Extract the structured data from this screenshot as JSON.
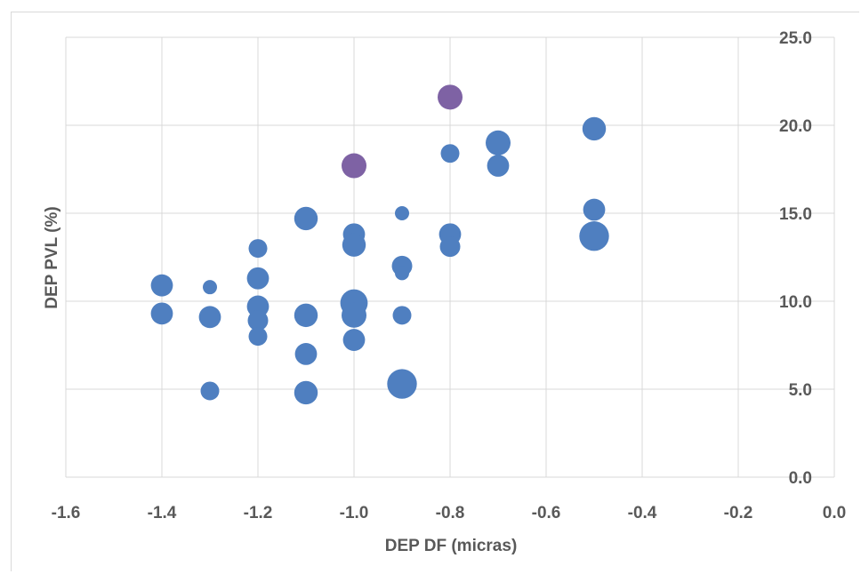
{
  "chart_data": {
    "type": "scatter",
    "subtype": "bubble",
    "xlabel": "DEP DF (micras)",
    "ylabel": "DEP PVL (%)",
    "xlim": [
      -1.6,
      0.0
    ],
    "ylim": [
      0.0,
      25.0
    ],
    "x_ticks": [
      "-1.6",
      "-1.4",
      "-1.2",
      "-1.0",
      "-0.8",
      "-0.6",
      "-0.4",
      "-0.2",
      "0.0"
    ],
    "y_ticks": [
      "0.0",
      "5.0",
      "10.0",
      "15.0",
      "20.0",
      "25.0"
    ],
    "y_axis_position": "right",
    "grid": true,
    "colors": {
      "primary": "#4f7fc0",
      "highlight": "#7e62a4",
      "grid": "#d9d9d9",
      "text": "#595959"
    },
    "points": [
      {
        "x": -1.4,
        "y": 10.9,
        "size": 3,
        "group": "primary"
      },
      {
        "x": -1.4,
        "y": 9.3,
        "size": 3,
        "group": "primary"
      },
      {
        "x": -1.3,
        "y": 10.8,
        "size": 1,
        "group": "primary"
      },
      {
        "x": -1.3,
        "y": 9.1,
        "size": 3,
        "group": "primary"
      },
      {
        "x": -1.3,
        "y": 4.9,
        "size": 2,
        "group": "primary"
      },
      {
        "x": -1.2,
        "y": 13.0,
        "size": 2,
        "group": "primary"
      },
      {
        "x": -1.2,
        "y": 11.3,
        "size": 3,
        "group": "primary"
      },
      {
        "x": -1.2,
        "y": 9.7,
        "size": 3,
        "group": "primary"
      },
      {
        "x": -1.2,
        "y": 8.9,
        "size": 2.5,
        "group": "primary"
      },
      {
        "x": -1.2,
        "y": 8.0,
        "size": 2,
        "group": "primary"
      },
      {
        "x": -1.1,
        "y": 14.7,
        "size": 3.5,
        "group": "primary"
      },
      {
        "x": -1.1,
        "y": 9.2,
        "size": 3.5,
        "group": "primary"
      },
      {
        "x": -1.1,
        "y": 7.0,
        "size": 3,
        "group": "primary"
      },
      {
        "x": -1.1,
        "y": 4.8,
        "size": 3.5,
        "group": "primary"
      },
      {
        "x": -1.0,
        "y": 17.7,
        "size": 4,
        "group": "highlight"
      },
      {
        "x": -1.0,
        "y": 13.8,
        "size": 3,
        "group": "primary"
      },
      {
        "x": -1.0,
        "y": 13.2,
        "size": 3.5,
        "group": "primary"
      },
      {
        "x": -1.0,
        "y": 9.9,
        "size": 5,
        "group": "primary"
      },
      {
        "x": -1.0,
        "y": 9.2,
        "size": 4,
        "group": "primary"
      },
      {
        "x": -1.0,
        "y": 7.8,
        "size": 3,
        "group": "primary"
      },
      {
        "x": -0.9,
        "y": 15.0,
        "size": 1,
        "group": "primary"
      },
      {
        "x": -0.9,
        "y": 12.0,
        "size": 2.5,
        "group": "primary"
      },
      {
        "x": -0.9,
        "y": 11.6,
        "size": 1,
        "group": "primary"
      },
      {
        "x": -0.9,
        "y": 9.2,
        "size": 2,
        "group": "primary"
      },
      {
        "x": -0.9,
        "y": 5.3,
        "size": 6,
        "group": "primary"
      },
      {
        "x": -0.8,
        "y": 21.6,
        "size": 4,
        "group": "highlight"
      },
      {
        "x": -0.8,
        "y": 18.4,
        "size": 2,
        "group": "primary"
      },
      {
        "x": -0.8,
        "y": 13.8,
        "size": 3,
        "group": "primary"
      },
      {
        "x": -0.8,
        "y": 13.1,
        "size": 2.5,
        "group": "primary"
      },
      {
        "x": -0.7,
        "y": 19.0,
        "size": 4,
        "group": "primary"
      },
      {
        "x": -0.7,
        "y": 17.7,
        "size": 3,
        "group": "primary"
      },
      {
        "x": -0.5,
        "y": 19.8,
        "size": 3.5,
        "group": "primary"
      },
      {
        "x": -0.5,
        "y": 15.2,
        "size": 3,
        "group": "primary"
      },
      {
        "x": -0.5,
        "y": 13.7,
        "size": 6,
        "group": "primary"
      }
    ]
  }
}
